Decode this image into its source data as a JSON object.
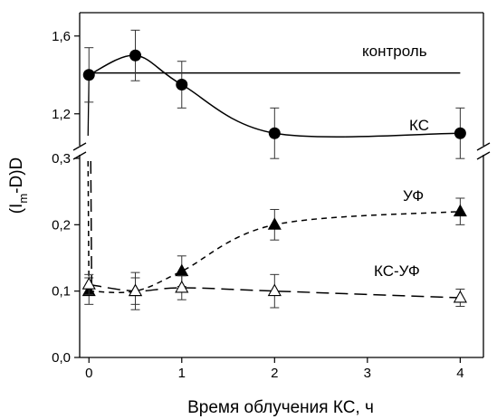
{
  "chart_data": {
    "type": "line",
    "xlabel": "Время облучения КС, ч",
    "ylabel_main": "(I",
    "ylabel_sub": "m",
    "ylabel_tail": "-D)D",
    "x_ticks": [
      "0",
      "1",
      "2",
      "3",
      "4"
    ],
    "xlim": [
      -0.1,
      4.25
    ],
    "y_axis_broken": true,
    "upper_panel": {
      "ylim": [
        1.05,
        1.72
      ],
      "y_ticks": [
        "1,2",
        "1,6"
      ]
    },
    "lower_panel": {
      "ylim": [
        0.0,
        0.3
      ],
      "y_ticks": [
        "0,0",
        "0,1",
        "0,2",
        "0,3"
      ]
    },
    "series": [
      {
        "name": "контроль",
        "panel": "upper",
        "style": "solid-line",
        "x": [
          0,
          4
        ],
        "y": [
          1.41,
          1.41
        ]
      },
      {
        "name": "КС",
        "panel": "upper",
        "style": "solid-smooth",
        "marker": "filled-circle",
        "x": [
          0,
          0.5,
          1,
          2,
          4
        ],
        "y": [
          1.4,
          1.5,
          1.35,
          1.1,
          1.1
        ],
        "error": [
          0.14,
          0.13,
          0.12,
          0.13,
          0.13
        ]
      },
      {
        "name": "УФ",
        "panel": "lower",
        "style": "short-dashed",
        "marker": "filled-triangle",
        "x": [
          0,
          0.5,
          1,
          2,
          4
        ],
        "y": [
          0.1,
          0.1,
          0.13,
          0.2,
          0.22
        ],
        "error": [
          0.02,
          0.02,
          0.023,
          0.023,
          0.02
        ]
      },
      {
        "name": "КС-УФ",
        "panel": "lower",
        "style": "long-dashed",
        "marker": "open-triangle",
        "x": [
          0,
          0.5,
          1,
          2,
          4
        ],
        "y": [
          0.11,
          0.1,
          0.105,
          0.1,
          0.09
        ],
        "error": [
          0.015,
          0.028,
          0.018,
          0.025,
          0.013
        ]
      }
    ]
  }
}
